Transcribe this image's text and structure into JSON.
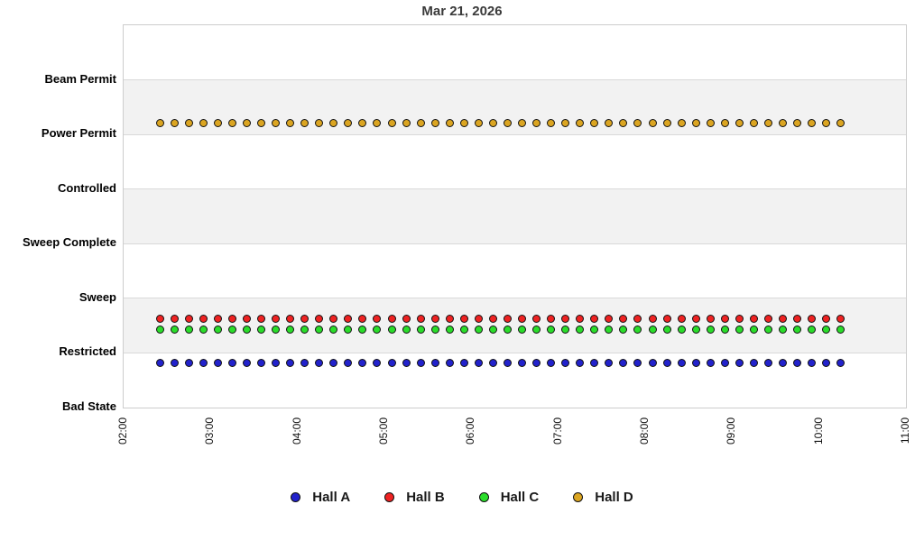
{
  "chart_data": {
    "type": "scatter",
    "title": "Mar 21, 2026",
    "y_categories": [
      "Bad State",
      "Restricted",
      "Sweep",
      "Sweep Complete",
      "Controlled",
      "Power Permit",
      "Beam Permit"
    ],
    "y_axis_top_value": 7,
    "x_tick_labels": [
      "02:00",
      "03:00",
      "04:00",
      "05:00",
      "06:00",
      "07:00",
      "08:00",
      "09:00",
      "10:00",
      "11:00"
    ],
    "x_start_hour": 2,
    "x_end_hour": 11,
    "sample_start": "02:25",
    "sample_end": "10:15",
    "sample_interval_minutes": 10,
    "series": [
      {
        "name": "Hall A",
        "color": "#2222cc",
        "y_value": 0.82
      },
      {
        "name": "Hall B",
        "color": "#ee2222",
        "y_value": 1.63
      },
      {
        "name": "Hall C",
        "color": "#2add2a",
        "y_value": 1.43
      },
      {
        "name": "Hall D",
        "color": "#dba521",
        "y_value": 5.21
      }
    ],
    "style": {
      "band_fill_even": "#ffffff",
      "band_fill_odd": "#f2f2f2",
      "gridline_color": "#d9d9d9",
      "plot_border_color": "#cdcdcd",
      "title_color": "#3a3a3a",
      "label_color": "#000000",
      "grid": "horizontal-bands",
      "legend_position": "bottom-center"
    }
  }
}
